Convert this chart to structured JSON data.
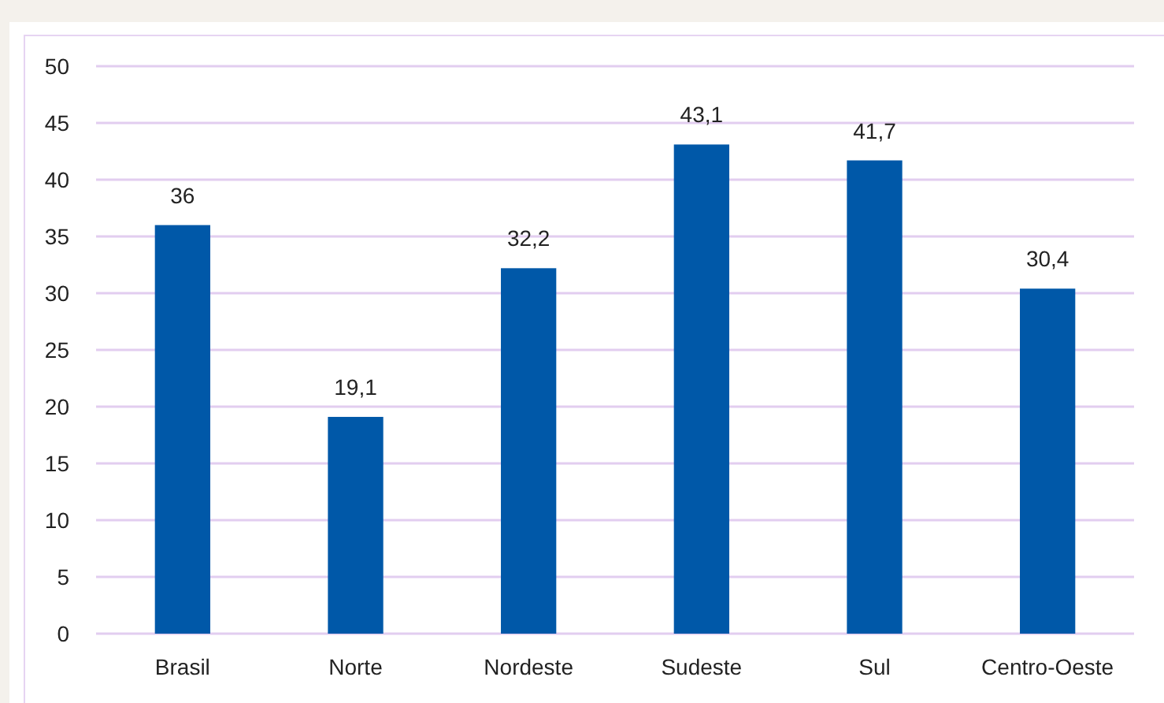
{
  "chart_data": {
    "type": "bar",
    "categories": [
      "Brasil",
      "Norte",
      "Nordeste",
      "Sudeste",
      "Sul",
      "Centro-Oeste"
    ],
    "values": [
      36,
      19.1,
      32.2,
      43.1,
      41.7,
      30.4
    ],
    "value_labels": [
      "36",
      "19,1",
      "32,2",
      "43,1",
      "41,7",
      "30,4"
    ],
    "color": "#0058a8",
    "ylim": [
      0,
      50
    ],
    "yticks": [
      0,
      5,
      10,
      15,
      20,
      25,
      30,
      35,
      40,
      45,
      50
    ],
    "grid": "y"
  }
}
